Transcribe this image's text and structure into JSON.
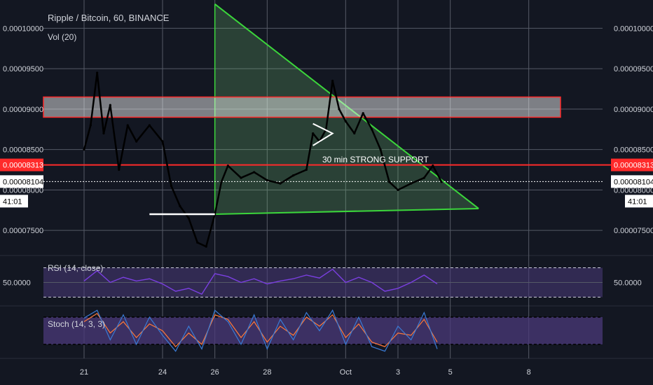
{
  "header": {
    "title": "Ripple / Bitcoin, 60, BINANCE",
    "vol_label": "Vol (20)"
  },
  "colors": {
    "background": "#131722",
    "grid": "#555a66",
    "candle": "#000000",
    "support": "#ff2a2a",
    "triangle": "#3bd63b",
    "rsi": "#7a3fe0",
    "stoch_k": "#3a7bd5",
    "stoch_d": "#ff7a3a",
    "pane_fill": "#4b3a7a"
  },
  "price_badges": {
    "support": "0.00008313",
    "last": "0.00008104",
    "countdown": "41:01"
  },
  "annotation": "30 min STRONG SUPPORT",
  "chart_data": [
    {
      "type": "line",
      "title": "Ripple / Bitcoin, 60, BINANCE",
      "x_ticks": [
        "21",
        "24",
        "26",
        "28",
        "Oct",
        "3",
        "5",
        "8"
      ],
      "y_ticks": [
        "0.00007500",
        "0.00008000",
        "0.00008500",
        "0.00009000",
        "0.00009500",
        "0.00010000"
      ],
      "ylim": [
        7.25e-05,
        0.0001035
      ],
      "series": [
        {
          "values": [
            {
              "x": "Sep 21 00:00",
              "y": 8.5e-05
            },
            {
              "x": "Sep 21 06:00",
              "y": 8.8e-05
            },
            {
              "x": "Sep 21 12:00",
              "y": 9.45e-05
            },
            {
              "x": "Sep 21 18:00",
              "y": 8.7e-05
            },
            {
              "x": "Sep 22 00:00",
              "y": 9.05e-05
            },
            {
              "x": "Sep 22 08:00",
              "y": 8.25e-05
            },
            {
              "x": "Sep 22 16:00",
              "y": 8.8e-05
            },
            {
              "x": "Sep 23 00:00",
              "y": 8.6e-05
            },
            {
              "x": "Sep 23 12:00",
              "y": 8.8e-05
            },
            {
              "x": "Sep 24 00:00",
              "y": 8.6e-05
            },
            {
              "x": "Sep 24 08:00",
              "y": 8.05e-05
            },
            {
              "x": "Sep 24 16:00",
              "y": 7.8e-05
            },
            {
              "x": "Sep 25 00:00",
              "y": 7.65e-05
            },
            {
              "x": "Sep 25 08:00",
              "y": 7.35e-05
            },
            {
              "x": "Sep 25 16:00",
              "y": 7.3e-05
            },
            {
              "x": "Sep 26 00:00",
              "y": 7.7e-05
            },
            {
              "x": "Sep 26 06:00",
              "y": 8.1e-05
            },
            {
              "x": "Sep 26 12:00",
              "y": 8.3e-05
            },
            {
              "x": "Sep 27 00:00",
              "y": 8.15e-05
            },
            {
              "x": "Sep 27 12:00",
              "y": 8.22e-05
            },
            {
              "x": "Sep 28 00:00",
              "y": 8.12e-05
            },
            {
              "x": "Sep 28 12:00",
              "y": 8.08e-05
            },
            {
              "x": "Sep 29 00:00",
              "y": 8.18e-05
            },
            {
              "x": "Sep 29 12:00",
              "y": 8.25e-05
            },
            {
              "x": "Sep 29 18:00",
              "y": 8.7e-05
            },
            {
              "x": "Sep 30 00:00",
              "y": 8.6e-05
            },
            {
              "x": "Sep 30 06:00",
              "y": 8.75e-05
            },
            {
              "x": "Sep 30 12:00",
              "y": 9.35e-05
            },
            {
              "x": "Sep 30 18:00",
              "y": 9e-05
            },
            {
              "x": "Oct 1 00:00",
              "y": 8.85e-05
            },
            {
              "x": "Oct 1 08:00",
              "y": 8.7e-05
            },
            {
              "x": "Oct 1 16:00",
              "y": 8.95e-05
            },
            {
              "x": "Oct 2 00:00",
              "y": 8.75e-05
            },
            {
              "x": "Oct 2 08:00",
              "y": 8.5e-05
            },
            {
              "x": "Oct 2 16:00",
              "y": 8.1e-05
            },
            {
              "x": "Oct 3 00:00",
              "y": 8e-05
            },
            {
              "x": "Oct 3 12:00",
              "y": 8.08e-05
            },
            {
              "x": "Oct 4 00:00",
              "y": 8.15e-05
            },
            {
              "x": "Oct 4 08:00",
              "y": 8.3e-05
            },
            {
              "x": "Oct 4 16:00",
              "y": 8.1e-05
            }
          ]
        }
      ],
      "drawings": {
        "support_zone": [
          8.9e-05,
          9.15e-05
        ],
        "support_line": 8.31e-05,
        "triangle": [
          {
            "x": "Sep 26 00:00",
            "y": 0.000103
          },
          {
            "x": "Oct 6 02:00",
            "y": 7.77e-05
          },
          {
            "x": "Sep 26 00:00",
            "y": 7.7e-05
          }
        ],
        "base_line": [
          {
            "x": "Sep 23 12:00",
            "y": 7.7e-05
          },
          {
            "x": "Sep 26 00:00",
            "y": 7.7e-05
          }
        ],
        "flag": [
          {
            "x": "Sep 29 18:00",
            "y": 8.55e-05
          },
          {
            "x": "Sep 30 12:00",
            "y": 8.7e-05
          },
          {
            "x": "Sep 29 18:00",
            "y": 8.82e-05
          }
        ]
      }
    },
    {
      "type": "line",
      "title": "RSI (14, close)",
      "y_ticks": [
        "50.0000"
      ],
      "ylim": [
        20,
        80
      ],
      "series": [
        {
          "values": [
            {
              "x": "Sep 21 00:00",
              "y": 52
            },
            {
              "x": "Sep 21 12:00",
              "y": 66
            },
            {
              "x": "Sep 22 00:00",
              "y": 50
            },
            {
              "x": "Sep 22 12:00",
              "y": 57
            },
            {
              "x": "Sep 23 00:00",
              "y": 52
            },
            {
              "x": "Sep 23 12:00",
              "y": 55
            },
            {
              "x": "Sep 24 00:00",
              "y": 48
            },
            {
              "x": "Sep 24 12:00",
              "y": 38
            },
            {
              "x": "Sep 25 00:00",
              "y": 42
            },
            {
              "x": "Sep 25 12:00",
              "y": 34
            },
            {
              "x": "Sep 26 00:00",
              "y": 62
            },
            {
              "x": "Sep 26 12:00",
              "y": 58
            },
            {
              "x": "Sep 27 00:00",
              "y": 50
            },
            {
              "x": "Sep 27 12:00",
              "y": 55
            },
            {
              "x": "Sep 28 00:00",
              "y": 48
            },
            {
              "x": "Sep 28 12:00",
              "y": 52
            },
            {
              "x": "Sep 29 00:00",
              "y": 55
            },
            {
              "x": "Sep 29 12:00",
              "y": 60
            },
            {
              "x": "Sep 30 00:00",
              "y": 56
            },
            {
              "x": "Sep 30 12:00",
              "y": 68
            },
            {
              "x": "Oct 1 00:00",
              "y": 50
            },
            {
              "x": "Oct 1 12:00",
              "y": 57
            },
            {
              "x": "Oct 2 00:00",
              "y": 50
            },
            {
              "x": "Oct 2 12:00",
              "y": 38
            },
            {
              "x": "Oct 3 00:00",
              "y": 42
            },
            {
              "x": "Oct 3 12:00",
              "y": 50
            },
            {
              "x": "Oct 4 00:00",
              "y": 60
            },
            {
              "x": "Oct 4 12:00",
              "y": 48
            }
          ]
        }
      ]
    },
    {
      "type": "line",
      "title": "Stoch (14, 3, 3)",
      "ylim": [
        0,
        100
      ],
      "series": [
        {
          "values": [
            {
              "x": "Sep 21 00:00",
              "y": 78
            },
            {
              "x": "Sep 21 12:00",
              "y": 95
            },
            {
              "x": "Sep 22 00:00",
              "y": 30
            },
            {
              "x": "Sep 22 12:00",
              "y": 85
            },
            {
              "x": "Sep 23 00:00",
              "y": 20
            },
            {
              "x": "Sep 23 12:00",
              "y": 80
            },
            {
              "x": "Sep 24 00:00",
              "y": 40
            },
            {
              "x": "Sep 24 12:00",
              "y": 5
            },
            {
              "x": "Sep 25 00:00",
              "y": 60
            },
            {
              "x": "Sep 25 12:00",
              "y": 10
            },
            {
              "x": "Sep 26 00:00",
              "y": 95
            },
            {
              "x": "Sep 26 12:00",
              "y": 70
            },
            {
              "x": "Sep 27 00:00",
              "y": 20
            },
            {
              "x": "Sep 27 12:00",
              "y": 85
            },
            {
              "x": "Sep 28 00:00",
              "y": 10
            },
            {
              "x": "Sep 28 12:00",
              "y": 75
            },
            {
              "x": "Sep 29 00:00",
              "y": 30
            },
            {
              "x": "Sep 29 12:00",
              "y": 90
            },
            {
              "x": "Sep 30 00:00",
              "y": 50
            },
            {
              "x": "Sep 30 12:00",
              "y": 95
            },
            {
              "x": "Oct 1 00:00",
              "y": 20
            },
            {
              "x": "Oct 1 12:00",
              "y": 80
            },
            {
              "x": "Oct 2 00:00",
              "y": 15
            },
            {
              "x": "Oct 2 12:00",
              "y": 5
            },
            {
              "x": "Oct 3 00:00",
              "y": 60
            },
            {
              "x": "Oct 3 12:00",
              "y": 30
            },
            {
              "x": "Oct 4 00:00",
              "y": 90
            },
            {
              "x": "Oct 4 12:00",
              "y": 10
            }
          ]
        },
        {
          "values": [
            {
              "x": "Sep 21 00:00",
              "y": 70
            },
            {
              "x": "Sep 21 12:00",
              "y": 88
            },
            {
              "x": "Sep 22 00:00",
              "y": 45
            },
            {
              "x": "Sep 22 12:00",
              "y": 70
            },
            {
              "x": "Sep 23 00:00",
              "y": 35
            },
            {
              "x": "Sep 23 12:00",
              "y": 65
            },
            {
              "x": "Sep 24 00:00",
              "y": 50
            },
            {
              "x": "Sep 24 12:00",
              "y": 15
            },
            {
              "x": "Sep 25 00:00",
              "y": 45
            },
            {
              "x": "Sep 25 12:00",
              "y": 20
            },
            {
              "x": "Sep 26 00:00",
              "y": 85
            },
            {
              "x": "Sep 26 12:00",
              "y": 75
            },
            {
              "x": "Sep 27 00:00",
              "y": 35
            },
            {
              "x": "Sep 27 12:00",
              "y": 70
            },
            {
              "x": "Sep 28 00:00",
              "y": 25
            },
            {
              "x": "Sep 28 12:00",
              "y": 60
            },
            {
              "x": "Sep 29 00:00",
              "y": 40
            },
            {
              "x": "Sep 29 12:00",
              "y": 80
            },
            {
              "x": "Sep 30 00:00",
              "y": 60
            },
            {
              "x": "Sep 30 12:00",
              "y": 85
            },
            {
              "x": "Oct 1 00:00",
              "y": 35
            },
            {
              "x": "Oct 1 12:00",
              "y": 65
            },
            {
              "x": "Oct 2 00:00",
              "y": 25
            },
            {
              "x": "Oct 2 12:00",
              "y": 15
            },
            {
              "x": "Oct 3 00:00",
              "y": 45
            },
            {
              "x": "Oct 3 12:00",
              "y": 40
            },
            {
              "x": "Oct 4 00:00",
              "y": 75
            },
            {
              "x": "Oct 4 12:00",
              "y": 25
            }
          ]
        }
      ]
    }
  ]
}
